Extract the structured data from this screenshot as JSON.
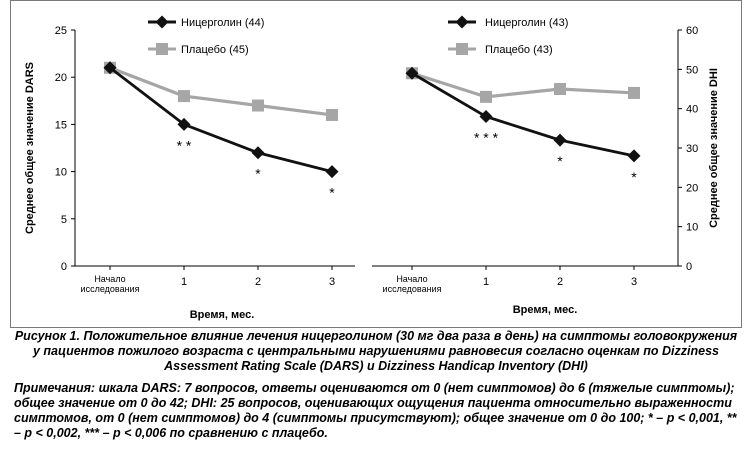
{
  "chart_data": [
    {
      "type": "line",
      "categories": [
        "Начало исследования",
        "1",
        "2",
        "3"
      ],
      "category_lines": [
        [
          "Начало",
          "исследования"
        ],
        [
          "1"
        ],
        [
          "2"
        ],
        [
          "3"
        ]
      ],
      "series": [
        {
          "name": "Ницерголин (44)",
          "values": [
            21,
            15,
            12,
            10
          ],
          "color": "#111111",
          "marker": "diamond"
        },
        {
          "name": "Плацебо (45)",
          "values": [
            21,
            18,
            17,
            16
          ],
          "color": "#a6a6a6",
          "marker": "square"
        }
      ],
      "annotations": [
        {
          "category": 1,
          "value": 15,
          "label": "* *"
        },
        {
          "category": 2,
          "value": 12,
          "label": "*"
        },
        {
          "category": 3,
          "value": 10,
          "label": "*"
        }
      ],
      "xlabel": "Время, мес.",
      "ylabel": "Среднее общее значение DARS",
      "ylim": [
        0,
        25
      ],
      "yticks": [
        0,
        5,
        10,
        15,
        20,
        25
      ],
      "y_axis_side": "left",
      "legend": "top-left"
    },
    {
      "type": "line",
      "categories": [
        "Начало исследования",
        "1",
        "2",
        "3"
      ],
      "category_lines": [
        [
          "Начало",
          "исследования"
        ],
        [
          "1"
        ],
        [
          "2"
        ],
        [
          "3"
        ]
      ],
      "series": [
        {
          "name": "Ницерголин (43)",
          "values": [
            49,
            38,
            32,
            28
          ],
          "color": "#111111",
          "marker": "diamond"
        },
        {
          "name": "Плацебо (43)",
          "values": [
            49,
            43,
            45,
            44
          ],
          "color": "#a6a6a6",
          "marker": "square"
        }
      ],
      "annotations": [
        {
          "category": 1,
          "value": 38,
          "label": "* * *"
        },
        {
          "category": 2,
          "value": 32,
          "label": "*"
        },
        {
          "category": 3,
          "value": 28,
          "label": "*"
        }
      ],
      "xlabel": "Время, мес.",
      "ylabel": "Среднее общее значение DHI",
      "ylim": [
        0,
        60
      ],
      "yticks": [
        0,
        10,
        20,
        30,
        40,
        50,
        60
      ],
      "y_axis_side": "right",
      "legend": "top-left"
    }
  ],
  "caption": "Рисунок 1. Положительное влияние лечения ницерголином (30 мг два раза в день) на симптомы головокружения у пациентов пожилого возраста с центральными нарушениями равновесия согласно оценкам по Dizziness Assessment Rating Scale (DARS) и Dizziness Handicap Inventory (DHI)",
  "notes": "Примечания: шкала DARS: 7 вопросов, ответы оцениваются от 0 (нет симптомов) до 6 (тяжелые симптомы); общее значение от 0 до 42; DHI: 25 вопросов, оценивающих ощущения пациента относительно выраженности симптомов, от 0 (нет симптомов) до 4 (симптомы присутствуют); общее значение от 0 до 100; * – p < 0,001, ** – p < 0,002, *** – p < 0,006 по сравнению с плацебо."
}
